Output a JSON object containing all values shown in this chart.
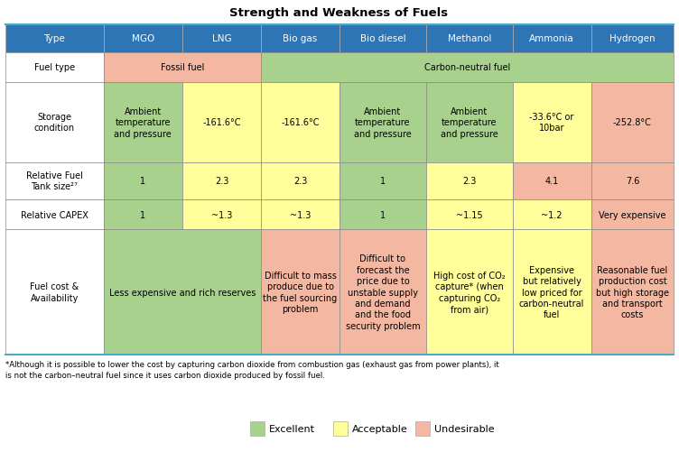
{
  "title": "Strength and Weakness of Fuels",
  "columns": [
    "Type",
    "MGO",
    "LNG",
    "Bio gas",
    "Bio diesel",
    "Methanol",
    "Ammonia",
    "Hydrogen"
  ],
  "header_bg": "#2E75B6",
  "header_text_color": "white",
  "colors": {
    "green": "#A9D18E",
    "yellow": "#FFFE9B",
    "pink": "#F4B8A2",
    "white": "#FFFFFF"
  },
  "col_widths_rel": [
    1.25,
    1.0,
    1.0,
    1.0,
    1.1,
    1.1,
    1.0,
    1.05
  ],
  "row_heights_rel": [
    0.55,
    0.6,
    1.6,
    0.75,
    0.6,
    2.5
  ],
  "rows": [
    {
      "label": "Fuel type",
      "cells": [
        {
          "text": "Fossil fuel",
          "colspan": 2,
          "color": "pink"
        },
        {
          "text": "Carbon-neutral fuel",
          "colspan": 5,
          "color": "green"
        }
      ]
    },
    {
      "label": "Storage\ncondition",
      "cells": [
        {
          "text": "Ambient\ntemperature\nand pressure",
          "color": "green"
        },
        {
          "text": "-161.6°C",
          "color": "yellow"
        },
        {
          "text": "-161.6°C",
          "color": "yellow"
        },
        {
          "text": "Ambient\ntemperature\nand pressure",
          "color": "green"
        },
        {
          "text": "Ambient\ntemperature\nand pressure",
          "color": "green"
        },
        {
          "text": "-33.6°C or\n10bar",
          "color": "yellow"
        },
        {
          "text": "-252.8°C",
          "color": "pink"
        }
      ]
    },
    {
      "label": "Relative Fuel\nTank size²⁷",
      "cells": [
        {
          "text": "1",
          "color": "green"
        },
        {
          "text": "2.3",
          "color": "yellow"
        },
        {
          "text": "2.3",
          "color": "yellow"
        },
        {
          "text": "1",
          "color": "green"
        },
        {
          "text": "2.3",
          "color": "yellow"
        },
        {
          "text": "4.1",
          "color": "pink"
        },
        {
          "text": "7.6",
          "color": "pink"
        }
      ]
    },
    {
      "label": "Relative CAPEX",
      "cells": [
        {
          "text": "1",
          "color": "green"
        },
        {
          "text": "~1.3",
          "color": "yellow"
        },
        {
          "text": "~1.3",
          "color": "yellow"
        },
        {
          "text": "1",
          "color": "green"
        },
        {
          "text": "~1.15",
          "color": "yellow"
        },
        {
          "text": "~1.2",
          "color": "yellow"
        },
        {
          "text": "Very expensive",
          "color": "pink"
        }
      ]
    },
    {
      "label": "Fuel cost &\nAvailability",
      "cells": [
        {
          "text": "Less expensive and rich reserves",
          "colspan": 2,
          "color": "green"
        },
        {
          "text": "Difficult to mass\nproduce due to\nthe fuel sourcing\nproblem",
          "color": "pink"
        },
        {
          "text": "Difficult to\nforecast the\nprice due to\nunstable supply\nand demand\nand the food\nsecurity problem",
          "color": "pink"
        },
        {
          "text": "High cost of CO₂\ncapture* (when\ncapturing CO₂\nfrom air)",
          "color": "yellow"
        },
        {
          "text": "Expensive\nbut relatively\nlow priced for\ncarbon-neutral\nfuel",
          "color": "yellow"
        },
        {
          "text": "Reasonable fuel\nproduction cost\nbut high storage\nand transport\ncosts",
          "color": "pink"
        }
      ]
    }
  ],
  "footnote": "*Although it is possible to lower the cost by capturing carbon dioxide from combustion gas (exhaust gas from power plants), it\nis not the carbon–neutral fuel since it uses carbon dioxide produced by fossil fuel.",
  "legend": [
    {
      "label": "Excellent",
      "color": "#A9D18E"
    },
    {
      "label": "Acceptable",
      "color": "#FFFE9B"
    },
    {
      "label": "Undesirable",
      "color": "#F4B8A2"
    }
  ]
}
